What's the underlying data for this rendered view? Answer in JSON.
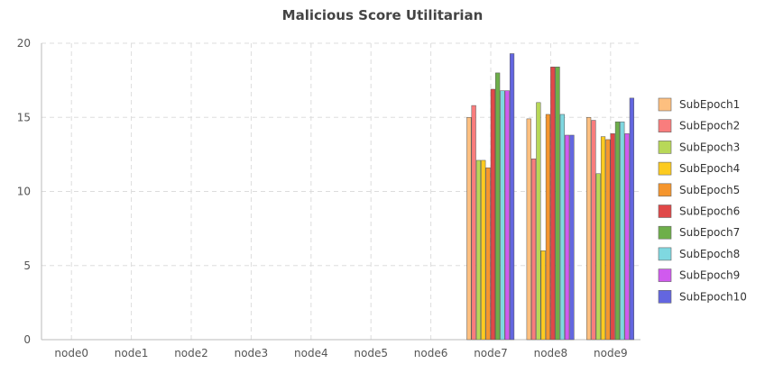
{
  "chart_data": {
    "type": "bar",
    "title": "Malicious Score Utilitarian",
    "xlabel": "",
    "ylabel": "",
    "ylim": [
      0,
      20
    ],
    "yticks": [
      0,
      5,
      10,
      15,
      20
    ],
    "grid": true,
    "legend_position": "right",
    "categories": [
      "node0",
      "node1",
      "node2",
      "node3",
      "node4",
      "node5",
      "node6",
      "node7",
      "node8",
      "node9"
    ],
    "series": [
      {
        "name": "SubEpoch1",
        "color": "#FDBF7F",
        "values": [
          0,
          0,
          0,
          0,
          0,
          0,
          0,
          15.0,
          14.9,
          15.0
        ]
      },
      {
        "name": "SubEpoch2",
        "color": "#F97D7D",
        "values": [
          0,
          0,
          0,
          0,
          0,
          0,
          0,
          15.8,
          12.2,
          14.8
        ]
      },
      {
        "name": "SubEpoch3",
        "color": "#B8D858",
        "values": [
          0,
          0,
          0,
          0,
          0,
          0,
          0,
          12.1,
          16.0,
          11.2
        ]
      },
      {
        "name": "SubEpoch4",
        "color": "#FCCB20",
        "values": [
          0,
          0,
          0,
          0,
          0,
          0,
          0,
          12.1,
          6.0,
          13.7
        ]
      },
      {
        "name": "SubEpoch5",
        "color": "#F5962E",
        "values": [
          0,
          0,
          0,
          0,
          0,
          0,
          0,
          11.6,
          15.2,
          13.5
        ]
      },
      {
        "name": "SubEpoch6",
        "color": "#E04848",
        "values": [
          0,
          0,
          0,
          0,
          0,
          0,
          0,
          16.9,
          18.4,
          13.9
        ]
      },
      {
        "name": "SubEpoch7",
        "color": "#6EAF4A",
        "values": [
          0,
          0,
          0,
          0,
          0,
          0,
          0,
          18.0,
          18.4,
          14.7
        ]
      },
      {
        "name": "SubEpoch8",
        "color": "#7FD8E0",
        "values": [
          0,
          0,
          0,
          0,
          0,
          0,
          0,
          16.8,
          15.2,
          14.7
        ]
      },
      {
        "name": "SubEpoch9",
        "color": "#D05AEE",
        "values": [
          0,
          0,
          0,
          0,
          0,
          0,
          0,
          16.8,
          13.8,
          13.9
        ]
      },
      {
        "name": "SubEpoch10",
        "color": "#6366E0",
        "values": [
          0,
          0,
          0,
          0,
          0,
          0,
          0,
          19.3,
          13.8,
          16.3
        ]
      }
    ]
  }
}
